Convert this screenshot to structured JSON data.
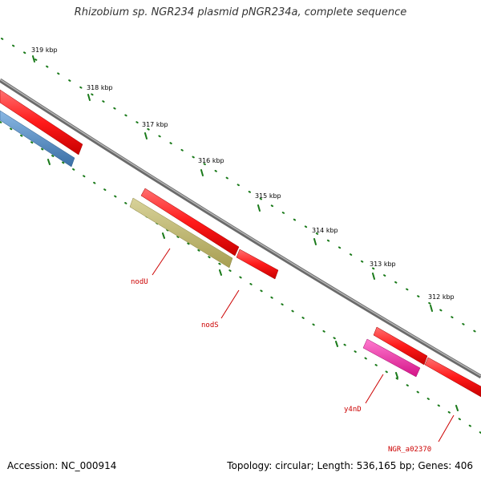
{
  "title": "Rhizobium sp. NGR234 plasmid pNGR234a, complete sequence",
  "scale": {
    "tick_labels": [
      "312 kbp",
      "313 kbp",
      "314 kbp",
      "315 kbp",
      "316 kbp",
      "317 kbp",
      "318 kbp",
      "319 kbp"
    ]
  },
  "genes": {
    "labels": [
      "nodU",
      "nodS",
      "y4nD",
      "NGR_a02370"
    ]
  },
  "footer": {
    "accession": "Accession: NC_000914",
    "summary": "Topology: circular; Length: 536,165 bp; Genes: 406"
  },
  "colors": {
    "backbone": "#8a8a8a",
    "forward_feature": "#ff1a1a",
    "blue_feature": "#4a86c0",
    "olive_feature": "#bcb56a",
    "magenta_feature": "#ff2aa8",
    "tick_green": "#1a7a1a",
    "label_red": "#cc0000"
  }
}
